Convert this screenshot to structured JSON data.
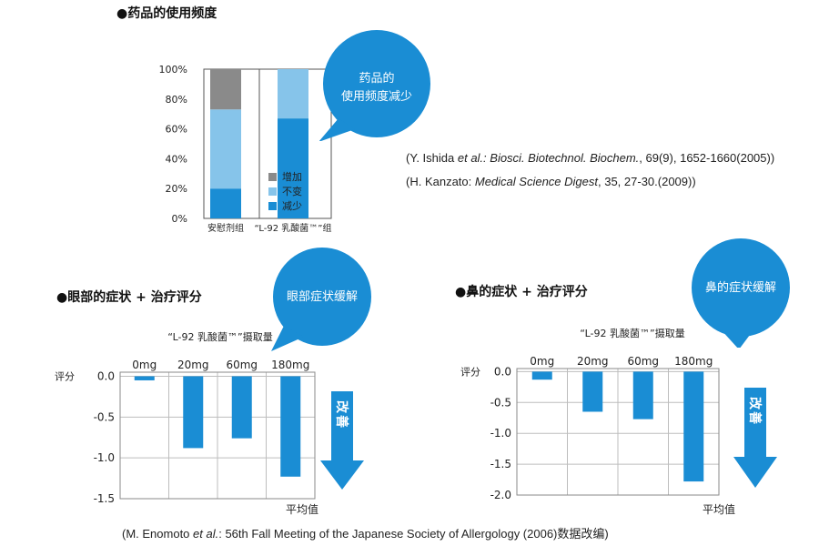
{
  "sections": {
    "usage_title": "●药品的使用频度",
    "eye_title": "●眼部的症状 + 治疗评分",
    "nose_title": "●鼻的症状 + 治疗评分"
  },
  "bubbles": {
    "usage_line1": "药品的",
    "usage_line2": "使用频度减少",
    "eye": "眼部症状缓解",
    "nose": "鼻的症状缓解"
  },
  "arrow_label": "改善",
  "references": {
    "ishida": {
      "pre": "(Y. Ishida ",
      "etal": "et al.",
      "journal": ": Biosci. Biotechnol. Biochem.",
      "post": ", 69(9), 1652-1660(2005))"
    },
    "kanzato": {
      "pre": "(H. Kanzato: ",
      "journal": "Medical Science Digest",
      "post": ", 35, 27-30.(2009))"
    },
    "enomoto": {
      "pre": "(M. Enomoto ",
      "etal": "et al.",
      "post": ": 56th Fall Meeting of the Japanese Society of Allergology (2006)数据改编)"
    }
  },
  "colors": {
    "increase": "#8a8a8a",
    "unchanged": "#86c4ea",
    "decrease": "#1a8dd4",
    "bar": "#1a8dd4",
    "bubble": "#1a8dd4",
    "arrow": "#1a8dd4"
  },
  "chart_data": [
    {
      "type": "bar",
      "stacked": true,
      "categories": [
        "安慰剂组",
        "“L-92 乳酸菌™”组"
      ],
      "series": [
        {
          "name": "减少",
          "values": [
            20,
            67
          ]
        },
        {
          "name": "不变",
          "values": [
            53,
            33
          ]
        },
        {
          "name": "增加",
          "values": [
            27,
            0
          ]
        }
      ],
      "yticks": [
        "0%",
        "20%",
        "40%",
        "60%",
        "80%",
        "100%"
      ],
      "ylim": [
        0,
        100
      ],
      "legend_position": "right"
    },
    {
      "type": "bar",
      "title": "“L-92 乳酸菌™”摄取量",
      "ylabel": "评分",
      "xlabel": "平均值",
      "categories": [
        "0mg",
        "20mg",
        "60mg",
        "180mg"
      ],
      "values": [
        -0.05,
        -0.88,
        -0.76,
        -1.23
      ],
      "yticks": [
        "0.0",
        "-0.5",
        "-1.0",
        "-1.5"
      ],
      "ylim": [
        -1.5,
        0.05
      ],
      "grid": true
    },
    {
      "type": "bar",
      "title": "“L-92 乳酸菌™”摄取量",
      "ylabel": "评分",
      "xlabel": "平均值",
      "categories": [
        "0mg",
        "20mg",
        "60mg",
        "180mg"
      ],
      "values": [
        -0.13,
        -0.65,
        -0.77,
        -1.78
      ],
      "yticks": [
        "0.0",
        "-0.5",
        "-1.0",
        "-1.5",
        "-2.0"
      ],
      "ylim": [
        -2.0,
        0.05
      ],
      "grid": true
    }
  ]
}
